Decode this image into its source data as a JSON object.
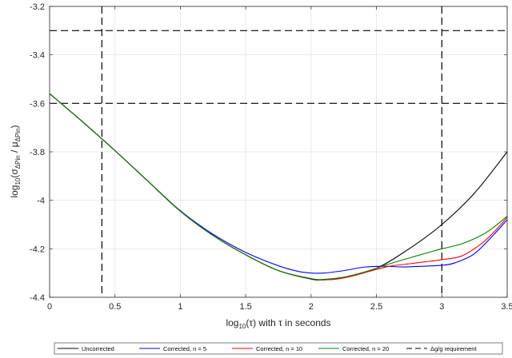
{
  "chart_data": {
    "type": "line",
    "xlabel": {
      "pre": "log",
      "sub": "10",
      "post": "(τ) with τ in seconds"
    },
    "ylabel": {
      "pre": "log",
      "sub": "10",
      "mid": "(σ",
      "sub2": "ΔPin",
      "sep": " / μ",
      "sub3": "ΔPin",
      "post": ")"
    },
    "xlim": [
      0,
      3.5
    ],
    "ylim": [
      -4.4,
      -3.2
    ],
    "x_ticks": [
      0,
      0.5,
      1,
      1.5,
      2,
      2.5,
      3,
      3.5
    ],
    "x_tick_labels": [
      "0",
      "0.5",
      "1",
      "1.5",
      "2",
      "2.5",
      "3",
      "3.5"
    ],
    "y_ticks": [
      -4.4,
      -4.2,
      -4.0,
      -3.8,
      -3.6,
      -3.4,
      -3.2
    ],
    "y_tick_labels": [
      "-4.4",
      "-4.2",
      "-4",
      "-3.8",
      "-3.6",
      "-3.4",
      "-3.2"
    ],
    "grid": true,
    "legend_position": "bottom",
    "requirement_lines": {
      "label": "Δg/g requirement",
      "color": "#000000",
      "vertical_x": [
        0.4,
        3.0
      ],
      "horizontal_y": [
        -3.3,
        -3.6
      ]
    },
    "series": [
      {
        "name": "Uncorrected",
        "color": "#000000",
        "x": [
          0,
          0.25,
          0.5,
          0.75,
          1.0,
          1.25,
          1.5,
          1.75,
          2.0,
          2.1,
          2.25,
          2.5,
          2.75,
          3.0,
          3.25,
          3.5
        ],
        "y": [
          -3.56,
          -3.675,
          -3.795,
          -3.92,
          -4.045,
          -4.145,
          -4.225,
          -4.29,
          -4.325,
          -4.328,
          -4.32,
          -4.28,
          -4.2,
          -4.1,
          -3.97,
          -3.8
        ]
      },
      {
        "name": "Corrected, n = 5",
        "color": "#0000ff",
        "x": [
          0,
          0.25,
          0.5,
          0.75,
          1.0,
          1.25,
          1.5,
          1.75,
          1.9,
          2.0,
          2.1,
          2.25,
          2.4,
          2.55,
          2.7,
          2.85,
          3.0,
          3.1,
          3.25,
          3.4,
          3.5
        ],
        "y": [
          -3.56,
          -3.675,
          -3.795,
          -3.92,
          -4.043,
          -4.14,
          -4.215,
          -4.27,
          -4.293,
          -4.3,
          -4.3,
          -4.29,
          -4.276,
          -4.272,
          -4.275,
          -4.272,
          -4.268,
          -4.258,
          -4.22,
          -4.14,
          -4.08
        ]
      },
      {
        "name": "Corrected, n = 10",
        "color": "#ff0000",
        "x": [
          0,
          0.25,
          0.5,
          0.75,
          1.0,
          1.25,
          1.5,
          1.75,
          2.0,
          2.1,
          2.25,
          2.4,
          2.5,
          2.6,
          2.75,
          2.9,
          3.0,
          3.15,
          3.3,
          3.4,
          3.5
        ],
        "y": [
          -3.56,
          -3.675,
          -3.795,
          -3.92,
          -4.045,
          -4.145,
          -4.225,
          -4.29,
          -4.323,
          -4.328,
          -4.32,
          -4.3,
          -4.285,
          -4.272,
          -4.262,
          -4.252,
          -4.245,
          -4.23,
          -4.18,
          -4.13,
          -4.07
        ]
      },
      {
        "name": "Corrected, n = 20",
        "color": "#008000",
        "x": [
          0,
          0.25,
          0.5,
          0.75,
          1.0,
          1.25,
          1.5,
          1.75,
          2.0,
          2.1,
          2.25,
          2.4,
          2.5,
          2.6,
          2.75,
          2.9,
          3.0,
          3.15,
          3.3,
          3.4,
          3.5
        ],
        "y": [
          -3.56,
          -3.675,
          -3.795,
          -3.92,
          -4.045,
          -4.145,
          -4.225,
          -4.29,
          -4.323,
          -4.326,
          -4.317,
          -4.297,
          -4.28,
          -4.262,
          -4.238,
          -4.215,
          -4.2,
          -4.18,
          -4.145,
          -4.11,
          -4.065
        ]
      }
    ]
  }
}
